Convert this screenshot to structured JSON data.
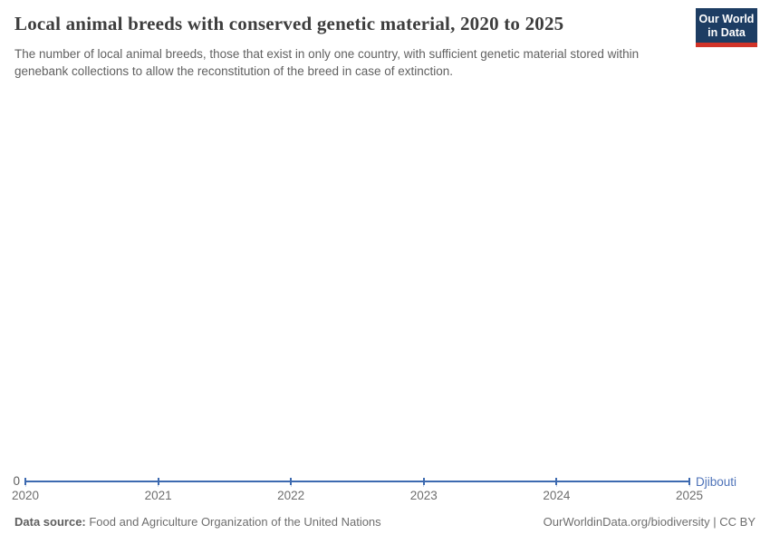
{
  "header": {
    "title": "Local animal breeds with conserved genetic material, 2020 to 2025",
    "subtitle": "The number of local animal breeds, those that exist in only one country, with sufficient genetic material stored within genebank collections to allow the reconstitution of the breed in case of extinction.",
    "logo": {
      "line1": "Our World",
      "line2": "in Data"
    }
  },
  "chart_data": {
    "type": "line",
    "title": "Local animal breeds with conserved genetic material, 2020 to 2025",
    "x": [
      2020,
      2021,
      2022,
      2023,
      2024,
      2025
    ],
    "series": [
      {
        "name": "Djibouti",
        "values": [
          0,
          0,
          0,
          0,
          0,
          0
        ],
        "color": "#3d6ab0"
      }
    ],
    "xlabel": "",
    "ylabel": "",
    "y_ticks": [
      0
    ],
    "ylim": [
      0,
      0
    ],
    "grid": false,
    "legend_position": "end-of-line-label",
    "point_markers": true
  },
  "axis": {
    "zero_label": "0"
  },
  "footer": {
    "source_label": "Data source:",
    "source_text": " Food and Agriculture Organization of the United Nations",
    "credit": "OurWorldinData.org/biodiversity | CC BY"
  },
  "colors": {
    "line": "#3d6ab0",
    "entity_label": "#4d72b8",
    "logo_bg": "#1d3d63",
    "logo_accent": "#d13328",
    "title_text": "#3d3d3d",
    "muted_text": "#6e6e6e"
  }
}
